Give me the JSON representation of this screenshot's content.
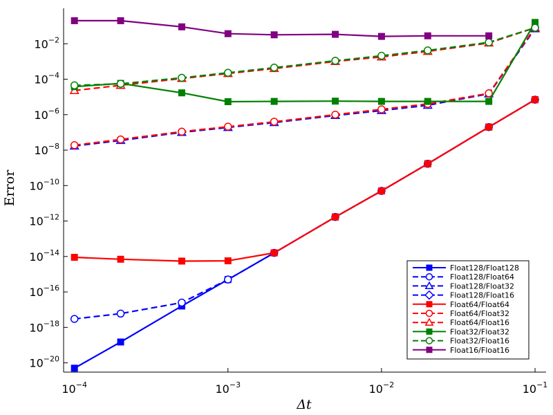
{
  "chart_data": {
    "type": "line",
    "title": "",
    "xlabel": "Δt",
    "ylabel": "Error",
    "x_scale": "log",
    "y_scale": "log",
    "xlim": [
      8.5e-05,
      0.118
    ],
    "ylim": [
      3e-21,
      1.0
    ],
    "grid": false,
    "legend_position": "bottom-right",
    "x_ticks": [
      {
        "value": 0.0001,
        "base": "10",
        "exp": "−4"
      },
      {
        "value": 0.001,
        "base": "10",
        "exp": "−3"
      },
      {
        "value": 0.01,
        "base": "10",
        "exp": "−2"
      },
      {
        "value": 0.1,
        "base": "10",
        "exp": "−1"
      }
    ],
    "y_ticks": [
      {
        "value": 1e-20,
        "base": "10",
        "exp": "−20"
      },
      {
        "value": 1e-18,
        "base": "10",
        "exp": "−18"
      },
      {
        "value": 1e-16,
        "base": "10",
        "exp": "−16"
      },
      {
        "value": 1e-14,
        "base": "10",
        "exp": "−14"
      },
      {
        "value": 1e-12,
        "base": "10",
        "exp": "−12"
      },
      {
        "value": 1e-10,
        "base": "10",
        "exp": "−10"
      },
      {
        "value": 1e-08,
        "base": "10",
        "exp": "−8"
      },
      {
        "value": 1e-06,
        "base": "10",
        "exp": "−6"
      },
      {
        "value": 0.0001,
        "base": "10",
        "exp": "−4"
      },
      {
        "value": 0.01,
        "base": "10",
        "exp": "−2"
      }
    ],
    "series": [
      {
        "name": "Float128/Float128",
        "color": "#0000ff",
        "marker": "square",
        "dash": "solid",
        "x": [
          0.0001,
          0.0002,
          0.0005,
          0.001,
          0.002,
          0.005,
          0.01,
          0.02,
          0.05,
          0.1
        ],
        "y": [
          5e-21,
          1.5e-19,
          1.6e-17,
          5e-16,
          1.6e-14,
          1.7e-12,
          5e-11,
          1.7e-09,
          2e-07,
          7e-06
        ]
      },
      {
        "name": "Float128/Float64",
        "color": "#0000ff",
        "marker": "circle",
        "dash": "dashed",
        "x": [
          0.0001,
          0.0002,
          0.0005,
          0.001,
          0.002,
          0.005,
          0.01,
          0.02,
          0.05,
          0.1
        ],
        "y": [
          3e-18,
          6e-18,
          2.5e-17,
          5e-16,
          1.6e-14,
          1.7e-12,
          5e-11,
          1.7e-09,
          2e-07,
          7e-06
        ]
      },
      {
        "name": "Float128/Float32",
        "color": "#0000ff",
        "marker": "triangle",
        "dash": "dashed",
        "x": [
          0.0001,
          0.0002,
          0.0005,
          0.001,
          0.002,
          0.005,
          0.01,
          0.02,
          0.05,
          0.1
        ],
        "y": [
          1.7e-08,
          3.5e-08,
          1e-07,
          1.9e-07,
          3.6e-07,
          9e-07,
          1.7e-06,
          3.4e-06,
          1.5e-05,
          0.07
        ]
      },
      {
        "name": "Float128/Float16",
        "color": "#0000ff",
        "marker": "diamond",
        "dash": "dashed",
        "x": [],
        "y": []
      },
      {
        "name": "Float64/Float64",
        "color": "#ff0000",
        "marker": "square",
        "dash": "solid",
        "x": [
          0.0001,
          0.0002,
          0.0005,
          0.001,
          0.002,
          0.005,
          0.01,
          0.02,
          0.05,
          0.1
        ],
        "y": [
          9e-15,
          7e-15,
          5.5e-15,
          5.7e-15,
          1.6e-14,
          1.7e-12,
          5e-11,
          1.7e-09,
          2e-07,
          7e-06
        ]
      },
      {
        "name": "Float64/Float32",
        "color": "#ff0000",
        "marker": "circle",
        "dash": "dashed",
        "x": [
          0.0001,
          0.0002,
          0.0005,
          0.001,
          0.002,
          0.005,
          0.01,
          0.02,
          0.05,
          0.1
        ],
        "y": [
          1.9e-08,
          4e-08,
          1.1e-07,
          2.1e-07,
          4e-07,
          1e-06,
          2e-06,
          4e-06,
          1.6e-05,
          0.08
        ]
      },
      {
        "name": "Float64/Float16",
        "color": "#ff0000",
        "marker": "triangle",
        "dash": "dashed",
        "x": [
          0.0001,
          0.0002,
          0.0005,
          0.001,
          0.002,
          0.005,
          0.01,
          0.02,
          0.05,
          0.1
        ],
        "y": [
          2.3e-05,
          4.5e-05,
          0.00011,
          0.00021,
          0.0004,
          0.001,
          0.0018,
          0.0037,
          0.011,
          0.08
        ]
      },
      {
        "name": "Float32/Float32",
        "color": "#008000",
        "marker": "square",
        "dash": "solid",
        "x": [
          0.0001,
          0.0002,
          0.0005,
          0.001,
          0.002,
          0.005,
          0.01,
          0.02,
          0.05,
          0.1
        ],
        "y": [
          3.8e-05,
          5.8e-05,
          1.7e-05,
          5.4e-06,
          5.6e-06,
          5.8e-06,
          5.6e-06,
          5.6e-06,
          5.6e-06,
          0.16
        ]
      },
      {
        "name": "Float32/Float16",
        "color": "#008000",
        "marker": "circle",
        "dash": "dashed",
        "x": [
          0.0001,
          0.0002,
          0.0005,
          0.001,
          0.002,
          0.005,
          0.01,
          0.02,
          0.05,
          0.1
        ],
        "y": [
          4.5e-05,
          5.5e-05,
          0.00012,
          0.00023,
          0.00045,
          0.0011,
          0.0021,
          0.0042,
          0.012,
          0.08
        ]
      },
      {
        "name": "Float16/Float16",
        "color": "#800080",
        "marker": "square",
        "dash": "solid",
        "x": [
          0.0001,
          0.0002,
          0.0005,
          0.001,
          0.002,
          0.005,
          0.01,
          0.02,
          0.05
        ],
        "y": [
          0.2,
          0.2,
          0.09,
          0.037,
          0.032,
          0.034,
          0.026,
          0.028,
          0.028
        ]
      }
    ]
  }
}
